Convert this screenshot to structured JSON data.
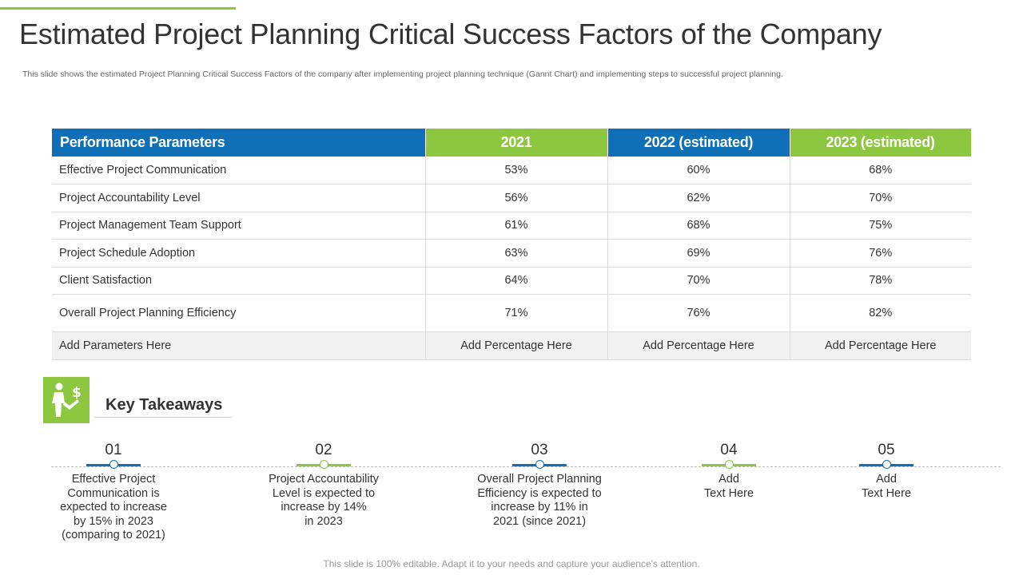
{
  "title": "Estimated Project Planning Critical Success Factors of the Company",
  "subtitle": "This slide shows the estimated Project Planning Critical Success Factors of the company after implementing project planning technique (Gannt Chart) and implementing steps to successful project planning.",
  "table": {
    "headers": [
      "Performance Parameters",
      "2021",
      "2022 (estimated)",
      "2023 (estimated)"
    ],
    "rows": [
      [
        "Effective Project Communication",
        "53%",
        "60%",
        "68%"
      ],
      [
        "Project Accountability Level",
        "56%",
        "62%",
        "70%"
      ],
      [
        "Project Management Team Support",
        "61%",
        "68%",
        "75%"
      ],
      [
        "Project Schedule Adoption",
        "63%",
        "69%",
        "76%"
      ],
      [
        "Client Satisfaction",
        "64%",
        "70%",
        "78%"
      ],
      [
        "Overall Project Planning Efficiency",
        "71%",
        "76%",
        "82%"
      ],
      [
        "Add Parameters Here",
        "Add Percentage Here",
        "Add Percentage Here",
        "Add Percentage Here"
      ]
    ]
  },
  "key_takeaways": {
    "title": "Key Takeaways",
    "icon": "person-dollar-icon",
    "steps": [
      {
        "num": "01",
        "lines": [
          "Effective Project",
          "Communication is",
          "expected to increase",
          "by 15% in 2023",
          "(comparing to 2021)"
        ]
      },
      {
        "num": "02",
        "lines": [
          "Project Accountability",
          "Level is expected to",
          "increase by 14%",
          "in 2023"
        ]
      },
      {
        "num": "03",
        "lines": [
          "Overall Project Planning",
          "Efficiency is expected to",
          "increase by 11% in",
          "2021 (since 2021)"
        ]
      },
      {
        "num": "04",
        "lines": [
          "Add",
          "Text Here"
        ]
      },
      {
        "num": "05",
        "lines": [
          "Add",
          "Text Here"
        ]
      }
    ]
  },
  "footer": "This slide is 100% editable. Adapt it to your needs and capture your audience's attention.",
  "colors": {
    "blue": "#0f70b7",
    "green": "#8dc63f"
  }
}
